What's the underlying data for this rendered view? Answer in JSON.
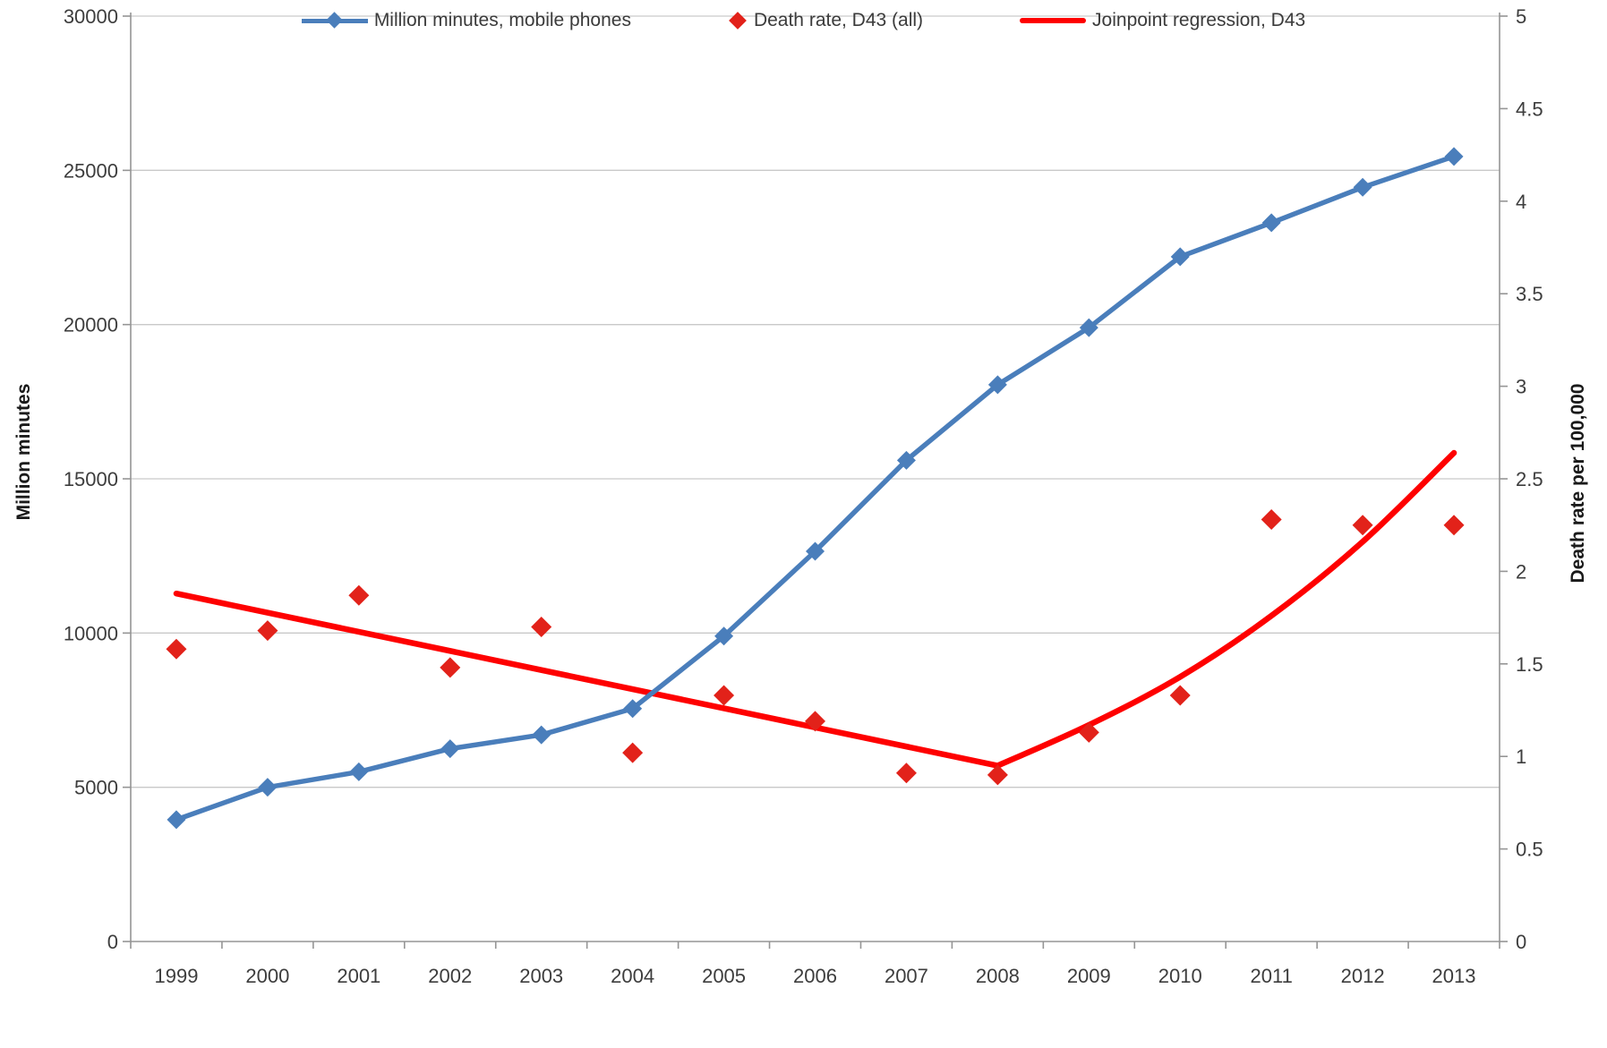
{
  "chart_data": {
    "type": "line",
    "title": "",
    "categories": [
      "1999",
      "2000",
      "2001",
      "2002",
      "2003",
      "2004",
      "2005",
      "2006",
      "2007",
      "2008",
      "2009",
      "2010",
      "2011",
      "2012",
      "2013"
    ],
    "ylabel_left": "Million minutes",
    "ylabel_right": "Death rate per 100,000",
    "y_left_axis": {
      "min": 0,
      "max": 30000,
      "tick_step": 5000,
      "tick_labels": [
        "0",
        "5000",
        "10000",
        "15000",
        "20000",
        "25000",
        "30000"
      ]
    },
    "y_right_axis": {
      "min": 0,
      "max": 5,
      "tick_step": 0.5,
      "tick_labels": [
        "0",
        "0.5",
        "1",
        "1.5",
        "2",
        "2.5",
        "3",
        "3.5",
        "4",
        "4.5",
        "5"
      ]
    },
    "grid": "horizontal",
    "grid_color": "#c9c9c9",
    "axis_color": "#959595",
    "legend_position": "bottom",
    "series": [
      {
        "name": "Million minutes, mobile phones",
        "type": "line-markers",
        "marker": "diamond",
        "axis": "left",
        "color": "#4a7ebb",
        "values": [
          3950,
          5000,
          5500,
          6250,
          6700,
          7550,
          9900,
          12650,
          15600,
          18050,
          19900,
          22200,
          23300,
          24450,
          25450
        ]
      },
      {
        "name": "Death rate, D43 (all)",
        "type": "scatter",
        "marker": "diamond",
        "axis": "right",
        "color": "#e2221a",
        "values": [
          1.58,
          1.68,
          1.87,
          1.48,
          1.7,
          1.02,
          1.33,
          1.19,
          0.91,
          0.9,
          1.13,
          1.33,
          2.28,
          2.25,
          2.25
        ]
      },
      {
        "name": "Joinpoint regression, D43",
        "type": "line",
        "axis": "right",
        "color": "#fe0000",
        "joinpoint_index": 9,
        "values": [
          1.88,
          1.78,
          1.67,
          1.57,
          1.47,
          1.36,
          1.26,
          1.16,
          1.05,
          0.95,
          1.17,
          1.43,
          1.76,
          2.16,
          2.64
        ]
      }
    ]
  }
}
